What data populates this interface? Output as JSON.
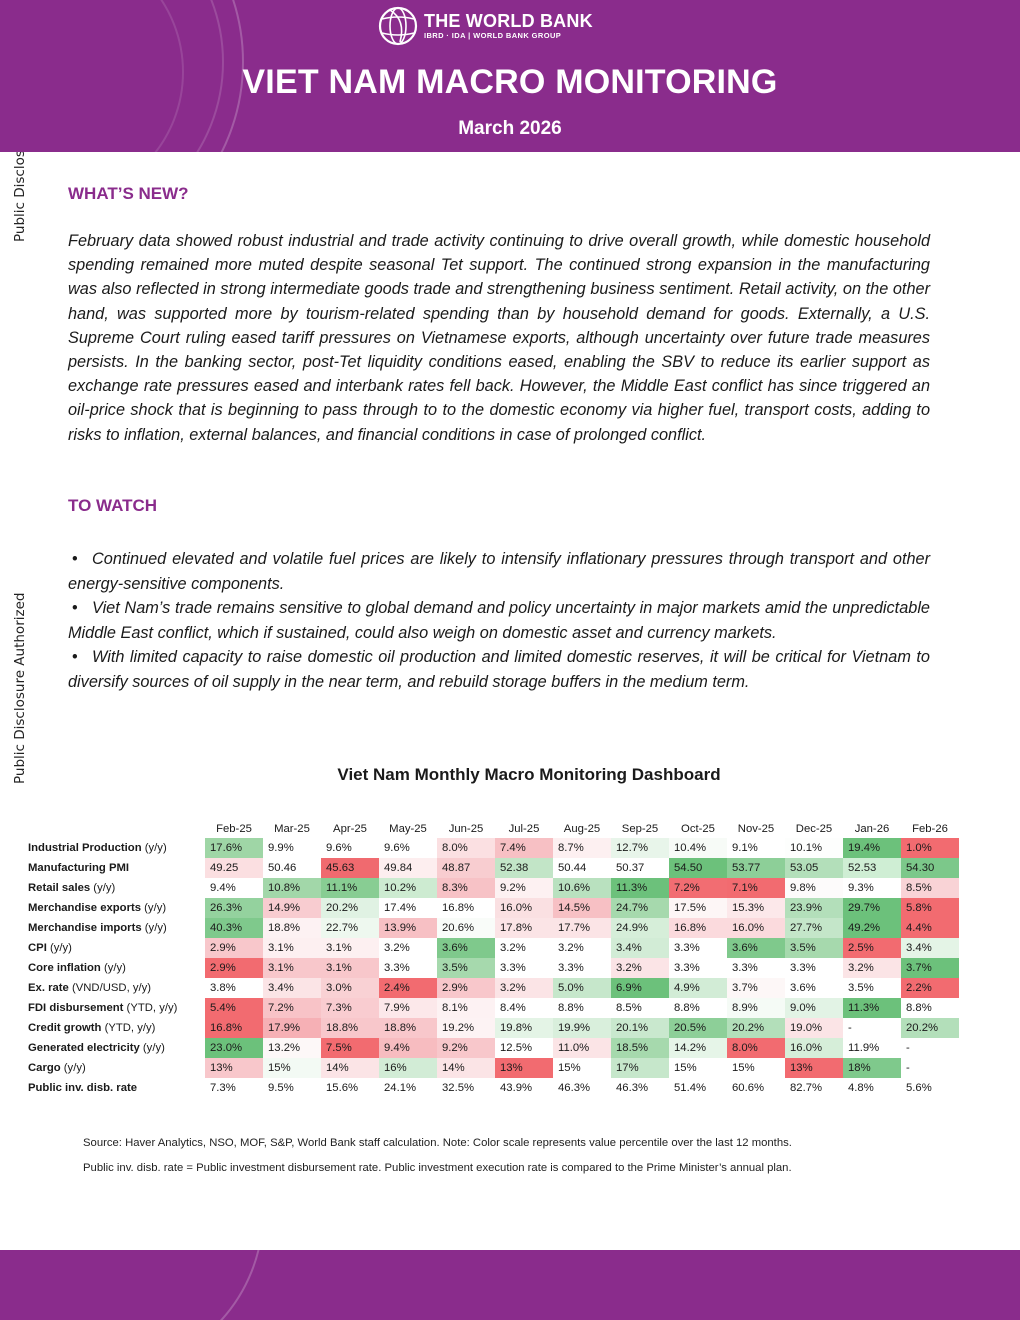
{
  "side_labels": [
    "Public Disclosure Authorized",
    "Public Disclosure Authorized"
  ],
  "header": {
    "logo_main": "THE WORLD BANK",
    "logo_sub": "IBRD · IDA | WORLD BANK GROUP",
    "title": "VIET NAM MACRO MONITORING",
    "date": "March 2026",
    "colors": {
      "brand": "#8a2c8c"
    }
  },
  "whats_new": {
    "heading": "WHAT’S NEW?",
    "text": "February data showed robust industrial and trade activity continuing to drive overall growth, while domestic household spending remained more muted despite seasonal Tet support. The continued strong expansion in the manufacturing was also reflected in strong intermediate goods trade and strengthening business sentiment. Retail activity, on the other hand, was supported more by tourism-related spending than by household demand for goods. Externally, a U.S. Supreme Court ruling eased tariff pressures on Vietnamese exports, although uncertainty over future trade measures persists. In the banking sector, post-Tet liquidity conditions eased, enabling the SBV to reduce its earlier support as exchange rate pressures eased and interbank rates fell back. However, the Middle East conflict has since triggered an oil-price shock that is beginning to pass through to to the domestic economy via higher fuel, transport costs, adding to risks to inflation, external balances, and financial conditions in case of prolonged conflict."
  },
  "to_watch": {
    "heading": "TO WATCH",
    "bullet_glyph": "•",
    "items": [
      "Continued elevated and volatile fuel prices are likely to intensify inflationary pressures through transport and other energy-sensitive components.",
      "Viet Nam’s trade remains sensitive to global demand and policy uncertainty in major markets amid the unpredictable Middle East conflict, which if sustained, could also weigh on domestic asset and currency markets.",
      "With limited capacity to raise domestic oil production and limited domestic reserves, it will be critical for Vietnam to diversify sources of oil supply in the near term, and rebuild storage buffers in the medium term."
    ]
  },
  "dashboard": {
    "title": "Viet Nam Monthly Macro Monitoring Dashboard",
    "columns": [
      "Feb-25",
      "Mar-25",
      "Apr-25",
      "May-25",
      "Jun-25",
      "Jul-25",
      "Aug-25",
      "Sep-25",
      "Oct-25",
      "Nov-25",
      "Dec-25",
      "Jan-26",
      "Feb-26"
    ],
    "rows": [
      {
        "label": "Industrial Production",
        "unit": " (y/y)",
        "values": [
          "17.6%",
          "9.9%",
          "9.6%",
          "9.6%",
          "8.0%",
          "7.4%",
          "8.7%",
          "12.7%",
          "10.4%",
          "9.1%",
          "10.1%",
          "19.4%",
          "1.0%"
        ],
        "colors": [
          "#9fd6a6",
          "",
          "",
          "",
          "#fbe0e2",
          "#f7c0c4",
          "#fdf0f1",
          "#e8f5ea",
          "#f7fbf7",
          "",
          "#fdfefd",
          "#6cc17b",
          "#f26b70"
        ]
      },
      {
        "label": "Manufacturing PMI",
        "unit": "",
        "values": [
          "49.25",
          "50.46",
          "45.63",
          "49.84",
          "48.87",
          "52.38",
          "50.44",
          "50.37",
          "54.50",
          "53.77",
          "53.05",
          "52.53",
          "54.30"
        ],
        "colors": [
          "#fbdfe1",
          "",
          "#f06a6f",
          "#fdeeef",
          "#f8cdd0",
          "#c2e5c7",
          "",
          "",
          "#6cc17b",
          "#8dcf98",
          "#b3dfba",
          "#cfeed4",
          "#7cc88a"
        ]
      },
      {
        "label": "Retail sales",
        "unit": " (y/y)",
        "values": [
          "9.4%",
          "10.8%",
          "11.1%",
          "10.2%",
          "8.3%",
          "9.2%",
          "10.6%",
          "11.3%",
          "7.2%",
          "7.1%",
          "9.8%",
          "9.3%",
          "8.5%"
        ],
        "colors": [
          "",
          "#a2d7a9",
          "#88cd93",
          "#cdebd1",
          "#f7c2c6",
          "#fdf1f2",
          "#b9e1bf",
          "#6cc17b",
          "#f26d72",
          "#f26b70",
          "#fdfbfb",
          "",
          "#f9d3d6"
        ]
      },
      {
        "label": "Merchandise exports",
        "unit": " (y/y)",
        "values": [
          "26.3%",
          "14.9%",
          "20.2%",
          "17.4%",
          "16.8%",
          "16.0%",
          "14.5%",
          "24.7%",
          "17.5%",
          "15.3%",
          "23.9%",
          "29.7%",
          "5.8%"
        ],
        "colors": [
          "#94d29e",
          "#f8ccd0",
          "#e0f2e3",
          "",
          "",
          "#fae0e2",
          "#f7c0c4",
          "#a6d9ad",
          "#fdf6f6",
          "#fce8ea",
          "#b3dfba",
          "#6cc17b",
          "#f26b70"
        ]
      },
      {
        "label": "Merchandise imports",
        "unit": " (y/y)",
        "values": [
          "40.3%",
          "18.8%",
          "22.7%",
          "13.9%",
          "20.6%",
          "17.8%",
          "17.7%",
          "24.9%",
          "16.8%",
          "16.0%",
          "27.7%",
          "49.2%",
          "4.4%"
        ],
        "colors": [
          "#7fc98c",
          "#fdf2f3",
          "#eef8ef",
          "#f7c0c4",
          "#f9fcf9",
          "#fbe4e6",
          "#fbe4e6",
          "#d6eed9",
          "#fbdadd",
          "#fbdadd",
          "#c4e6c9",
          "#6cc17b",
          "#f26b70"
        ]
      },
      {
        "label": "CPI",
        "unit": " (y/y)",
        "values": [
          "2.9%",
          "3.1%",
          "3.1%",
          "3.2%",
          "3.6%",
          "3.2%",
          "3.2%",
          "3.4%",
          "3.3%",
          "3.6%",
          "3.5%",
          "2.5%",
          "3.4%"
        ],
        "colors": [
          "#f8c7cb",
          "#fdf0f1",
          "#fdf0f1",
          "",
          "#7fc98c",
          "",
          "",
          "#d2ecd6",
          "",
          "#7fc98c",
          "#a6d9ad",
          "#f26b70",
          "#e4f4e6"
        ]
      },
      {
        "label": "Core inflation",
        "unit": " (y/y)",
        "values": [
          "2.9%",
          "3.1%",
          "3.1%",
          "3.3%",
          "3.5%",
          "3.3%",
          "3.3%",
          "3.2%",
          "3.3%",
          "3.3%",
          "3.3%",
          "3.2%",
          "3.7%"
        ],
        "colors": [
          "#f26b70",
          "#f8c7cb",
          "#f8c7cb",
          "",
          "#a6d9ad",
          "",
          "",
          "#fbe4e6",
          "",
          "",
          "",
          "#fbe4e6",
          "#6cc17b"
        ]
      },
      {
        "label": "Ex. rate",
        "unit": " (VND/USD, y/y)",
        "values": [
          "3.8%",
          "3.4%",
          "3.0%",
          "2.4%",
          "2.9%",
          "3.2%",
          "5.0%",
          "6.9%",
          "4.9%",
          "3.7%",
          "3.6%",
          "3.5%",
          "2.2%"
        ],
        "colors": [
          "",
          "#fbe4e6",
          "#f9d1d4",
          "#f26b70",
          "#f8c7cb",
          "#fbe4e6",
          "#c6e7cb",
          "#6cc17b",
          "#d2ecd6",
          "#fdf7f7",
          "",
          "",
          "#f26b70"
        ]
      },
      {
        "label": "FDI disbursement",
        "unit": " (YTD, y/y)",
        "values": [
          "5.4%",
          "7.2%",
          "7.3%",
          "7.9%",
          "8.1%",
          "8.4%",
          "8.8%",
          "8.5%",
          "8.8%",
          "8.9%",
          "9.0%",
          "11.3%",
          "8.8%"
        ],
        "colors": [
          "#f26b70",
          "#f8c3c7",
          "#f9ccd0",
          "#fce8ea",
          "#fdf2f3",
          "",
          "",
          "",
          "",
          "#f5fbf6",
          "#e2f3e5",
          "#6cc17b",
          ""
        ]
      },
      {
        "label": "Credit growth",
        "unit": " (YTD, y/y)",
        "values": [
          "16.8%",
          "17.9%",
          "18.8%",
          "18.8%",
          "19.2%",
          "19.8%",
          "19.9%",
          "20.1%",
          "20.5%",
          "20.2%",
          "19.0%",
          "-",
          "20.2%"
        ],
        "colors": [
          "#f26b70",
          "#f6b0b5",
          "#f8c7cb",
          "#f8c7cb",
          "#fdf3f4",
          "#e4f4e6",
          "#d9efdc",
          "#c9e8ce",
          "#8dcf98",
          "#b3dfba",
          "#fbe4e6",
          "",
          "#b3dfba"
        ]
      },
      {
        "label": "Generated electricity",
        "unit": " (y/y)",
        "values": [
          "23.0%",
          "13.2%",
          "7.5%",
          "9.4%",
          "9.2%",
          "12.5%",
          "11.0%",
          "18.5%",
          "14.2%",
          "8.0%",
          "16.0%",
          "11.9%",
          "-"
        ],
        "colors": [
          "#6cc17b",
          "#fdf8f8",
          "#f26b70",
          "#f7bcc0",
          "#f8c7cb",
          "",
          "#fbe4e6",
          "#a6d9ad",
          "#e6f5e8",
          "#f26b70",
          "#d6eed9",
          "",
          ""
        ]
      },
      {
        "label": "Cargo",
        "unit": " (y/y)",
        "values": [
          "13%",
          "15%",
          "14%",
          "16%",
          "14%",
          "13%",
          "15%",
          "17%",
          "15%",
          "15%",
          "13%",
          "18%",
          "-"
        ],
        "colors": [
          "#f8c7cb",
          "#f3faf4",
          "#fbe4e6",
          "#d2ecd6",
          "#fbe4e6",
          "#f26b70",
          "",
          "#c6e7cb",
          "",
          "",
          "#f26b70",
          "#7fc98c",
          ""
        ]
      },
      {
        "label": "Public inv. disb. rate",
        "unit": "",
        "values": [
          "7.3%",
          "9.5%",
          "15.6%",
          "24.1%",
          "32.5%",
          "43.9%",
          "46.3%",
          "46.3%",
          "51.4%",
          "60.6%",
          "82.7%",
          "4.8%",
          "5.6%"
        ],
        "colors": [
          "",
          "",
          "",
          "",
          "",
          "",
          "",
          "",
          "",
          "",
          "",
          "",
          ""
        ]
      }
    ]
  },
  "notes": [
    "Source: Haver Analytics, NSO, MOF, S&P, World Bank staff calculation. Note: Color scale represents value percentile over the last 12 months.",
    "Public inv. disb. rate = Public investment disbursement rate. Public investment execution rate is compared to the Prime Minister’s annual plan."
  ]
}
